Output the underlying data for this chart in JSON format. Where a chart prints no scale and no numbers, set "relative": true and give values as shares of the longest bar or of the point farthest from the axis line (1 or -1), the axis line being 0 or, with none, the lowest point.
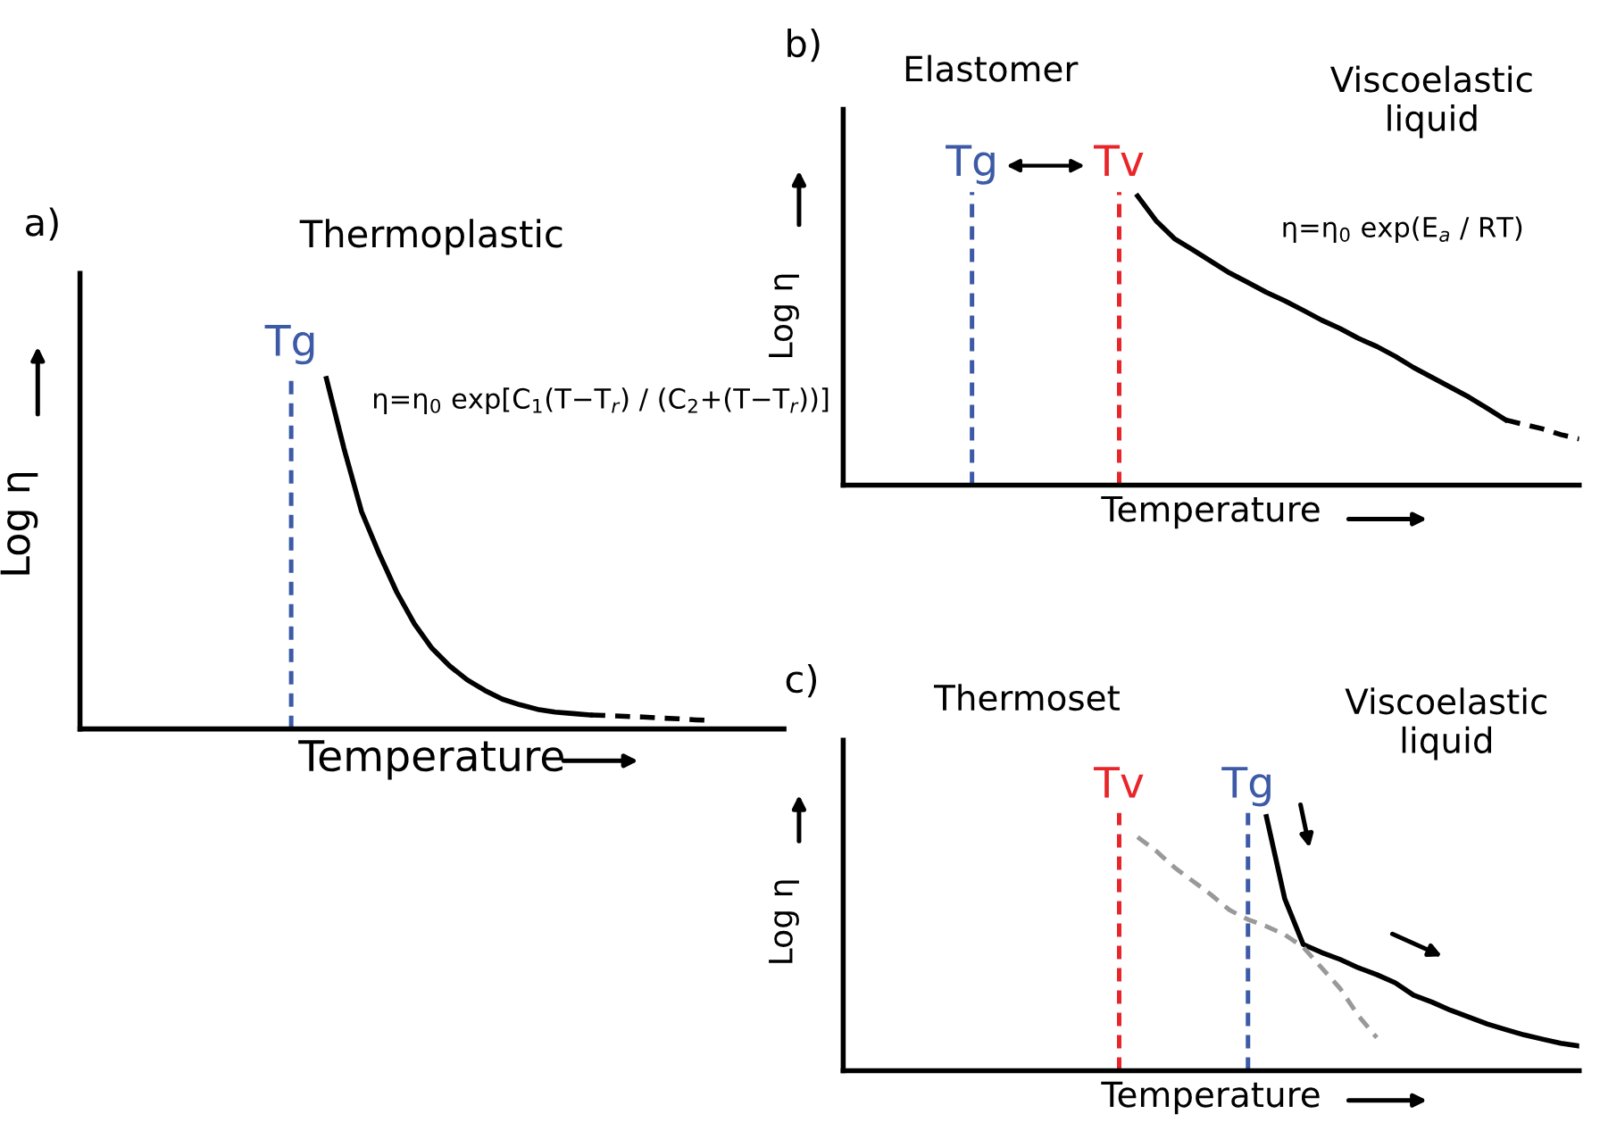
{
  "chart_data": [
    {
      "type": "line",
      "title": "a)",
      "xlabel": "Temperature",
      "ylabel": "Log η",
      "relative": true,
      "tick_labels": false,
      "categories": [
        null,
        null,
        null,
        null,
        null,
        null,
        null,
        null,
        null,
        null,
        null,
        null,
        null,
        null,
        null,
        null,
        null,
        null,
        null,
        null,
        null,
        null,
        null,
        null,
        null,
        null,
        null,
        null,
        null,
        null,
        null,
        null,
        null,
        null,
        null,
        null,
        null,
        null,
        null,
        null,
        null
      ],
      "annotations": [
        "Thermoplastic",
        "η=η$_{0}$ exp[C$_{1}$(T−T$_{r}$) / (C$_{2}$+(T−T$_{r}$))]",
        "Tg"
      ],
      "series": [
        {
          "color": "#000000",
          "line_style": "solid",
          "values": [
            null,
            null,
            null,
            null,
            null,
            null,
            null,
            null,
            null,
            null,
            null,
            null,
            null,
            null,
            1.0,
            0.8,
            0.62,
            0.5,
            0.39,
            0.3,
            0.23,
            0.18,
            0.14,
            0.11,
            0.085,
            0.069,
            0.056,
            0.048,
            0.044,
            0.04,
            null,
            null,
            null,
            null,
            null,
            null,
            null,
            null,
            null,
            null,
            null
          ]
        },
        {
          "color": "#000000",
          "line_style": "dashed",
          "values": [
            null,
            null,
            null,
            null,
            null,
            null,
            null,
            null,
            null,
            null,
            null,
            null,
            null,
            null,
            null,
            null,
            null,
            null,
            null,
            null,
            null,
            null,
            null,
            null,
            null,
            null,
            null,
            null,
            null,
            0.04,
            0.038,
            0.036,
            0.034,
            0.031,
            0.029,
            0.026,
            0.024,
            null,
            null,
            null,
            null
          ]
        }
      ]
    },
    {
      "type": "line",
      "title": "b)",
      "xlabel": "Temperature",
      "ylabel": "Log η",
      "relative": true,
      "tick_labels": false,
      "categories": [
        null,
        null,
        null,
        null,
        null,
        null,
        null,
        null,
        null,
        null,
        null,
        null,
        null,
        null,
        null,
        null,
        null,
        null,
        null,
        null,
        null,
        null,
        null,
        null,
        null,
        null,
        null,
        null,
        null,
        null,
        null,
        null,
        null,
        null,
        null,
        null,
        null,
        null,
        null,
        null,
        null
      ],
      "annotations": [
        "Elastomer",
        "Viscoelastic\nliquid",
        "η=η$_{0}$ exp(E$_{a}$ / RT)",
        "Tg",
        "Tv"
      ],
      "series": [
        {
          "color": "#000000",
          "line_style": "solid",
          "values": [
            null,
            null,
            null,
            null,
            null,
            null,
            null,
            null,
            null,
            null,
            null,
            null,
            null,
            null,
            null,
            null,
            1.0,
            0.915,
            0.853,
            0.814,
            0.774,
            0.734,
            0.701,
            0.667,
            0.638,
            0.605,
            0.571,
            0.542,
            0.508,
            0.48,
            0.446,
            0.407,
            0.373,
            0.339,
            0.305,
            0.266,
            0.226,
            null,
            null,
            null,
            null
          ]
        },
        {
          "color": "#000000",
          "line_style": "dashed",
          "values": [
            null,
            null,
            null,
            null,
            null,
            null,
            null,
            null,
            null,
            null,
            null,
            null,
            null,
            null,
            null,
            null,
            null,
            null,
            null,
            null,
            null,
            null,
            null,
            null,
            null,
            null,
            null,
            null,
            null,
            null,
            null,
            null,
            null,
            null,
            null,
            null,
            0.226,
            0.21,
            0.195,
            0.175,
            0.16
          ]
        }
      ]
    },
    {
      "type": "line",
      "title": "c)",
      "xlabel": "Temperature",
      "ylabel": "Log η",
      "relative": true,
      "tick_labels": false,
      "categories": [
        null,
        null,
        null,
        null,
        null,
        null,
        null,
        null,
        null,
        null,
        null,
        null,
        null,
        null,
        null,
        null,
        null,
        null,
        null,
        null,
        null,
        null,
        null,
        null,
        null,
        null,
        null,
        null,
        null,
        null,
        null,
        null,
        null,
        null,
        null,
        null,
        null,
        null,
        null,
        null,
        null
      ],
      "annotations": [
        "Thermoset",
        "Viscoelastic\nliquid",
        "Tv",
        "Tg"
      ],
      "series": [
        {
          "color": "#000000",
          "line_style": "solid",
          "values": [
            null,
            null,
            null,
            null,
            null,
            null,
            null,
            null,
            null,
            null,
            null,
            null,
            null,
            null,
            null,
            null,
            null,
            null,
            null,
            null,
            null,
            null,
            null,
            1.0,
            0.676,
            0.497,
            0.465,
            0.438,
            0.405,
            0.378,
            0.346,
            0.297,
            0.27,
            0.238,
            0.211,
            0.184,
            0.162,
            0.141,
            0.124,
            0.108,
            0.097
          ]
        },
        {
          "color": "#999999",
          "line_style": "dashed",
          "values": [
            null,
            null,
            null,
            null,
            null,
            null,
            null,
            null,
            null,
            null,
            null,
            null,
            null,
            null,
            null,
            null,
            0.919,
            0.865,
            0.8,
            0.746,
            0.692,
            0.632,
            0.595,
            0.568,
            0.535,
            0.486,
            0.405,
            0.324,
            0.216,
            0.13,
            null,
            null,
            null,
            null,
            null,
            null,
            null,
            null,
            null,
            null,
            null
          ]
        }
      ]
    }
  ]
}
